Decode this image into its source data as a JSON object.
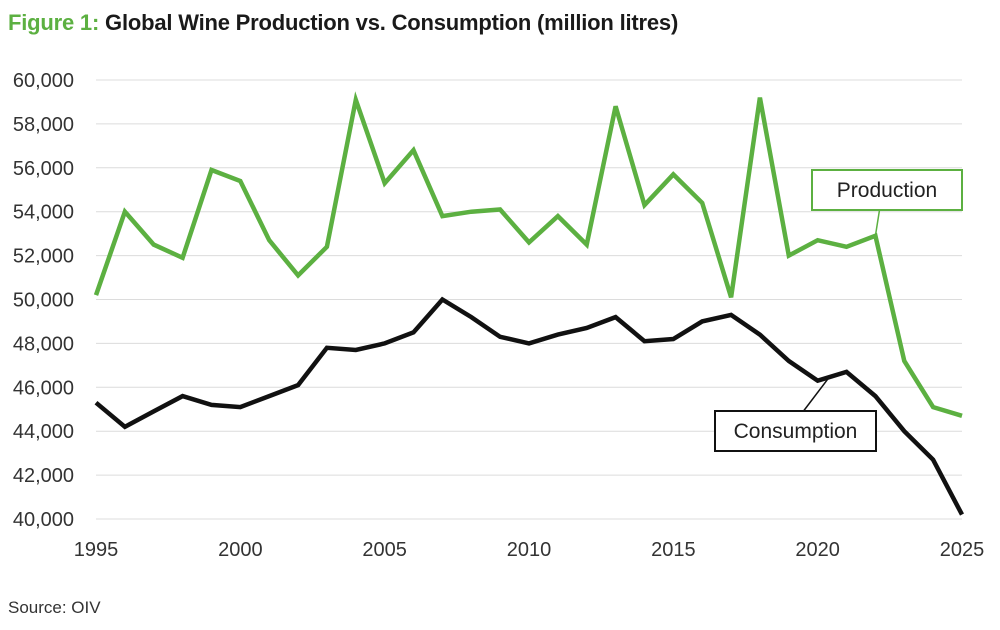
{
  "figure": {
    "label": "Figure 1:",
    "title": "Global Wine Production vs. Consumption (million litres)"
  },
  "source": "Source: OIV",
  "chart_data": {
    "type": "line",
    "title": "Global Wine Production vs. Consumption (million litres)",
    "xlabel": "",
    "ylabel": "",
    "xlim": [
      1995,
      2025
    ],
    "ylim": [
      40000,
      60000
    ],
    "x_ticks": [
      1995,
      2000,
      2005,
      2010,
      2015,
      2020,
      2025
    ],
    "x_tick_labels": [
      "1995",
      "2000",
      "2005",
      "2010",
      "2015",
      "2020",
      "2025"
    ],
    "y_ticks": [
      40000,
      42000,
      44000,
      46000,
      48000,
      50000,
      52000,
      54000,
      56000,
      58000,
      60000
    ],
    "y_tick_labels": [
      "40,000",
      "42,000",
      "44,000",
      "46,000",
      "48,000",
      "50,000",
      "52,000",
      "54,000",
      "56,000",
      "58,000",
      "60,000"
    ],
    "grid": "horizontal",
    "x": [
      1995,
      1996,
      1997,
      1998,
      1999,
      2000,
      2001,
      2002,
      2003,
      2004,
      2005,
      2006,
      2007,
      2008,
      2009,
      2010,
      2011,
      2012,
      2013,
      2014,
      2015,
      2016,
      2017,
      2018,
      2019,
      2020,
      2021,
      2022,
      2023,
      2024,
      2025
    ],
    "series": [
      {
        "name": "Production",
        "color": "#5cb041",
        "values": [
          50200,
          54000,
          52500,
          51900,
          55900,
          55400,
          52700,
          51100,
          52400,
          59100,
          55300,
          56800,
          53800,
          54000,
          54100,
          52600,
          53800,
          52500,
          58800,
          54300,
          55700,
          54400,
          50100,
          59200,
          52000,
          52700,
          52400,
          52900,
          47200,
          45100,
          44700
        ]
      },
      {
        "name": "Consumption",
        "color": "#111111",
        "values": [
          45300,
          44200,
          44900,
          45600,
          45200,
          45100,
          45600,
          46100,
          47800,
          47700,
          48000,
          48500,
          50000,
          49200,
          48300,
          48000,
          48400,
          48700,
          49200,
          48100,
          48200,
          49000,
          49300,
          48400,
          47200,
          46300,
          46700,
          45600,
          44000,
          42700,
          40200
        ]
      }
    ],
    "annotations": [
      {
        "series": "Production",
        "text": "Production",
        "color": "#5cb041"
      },
      {
        "series": "Consumption",
        "text": "Consumption",
        "color": "#111111"
      }
    ]
  }
}
